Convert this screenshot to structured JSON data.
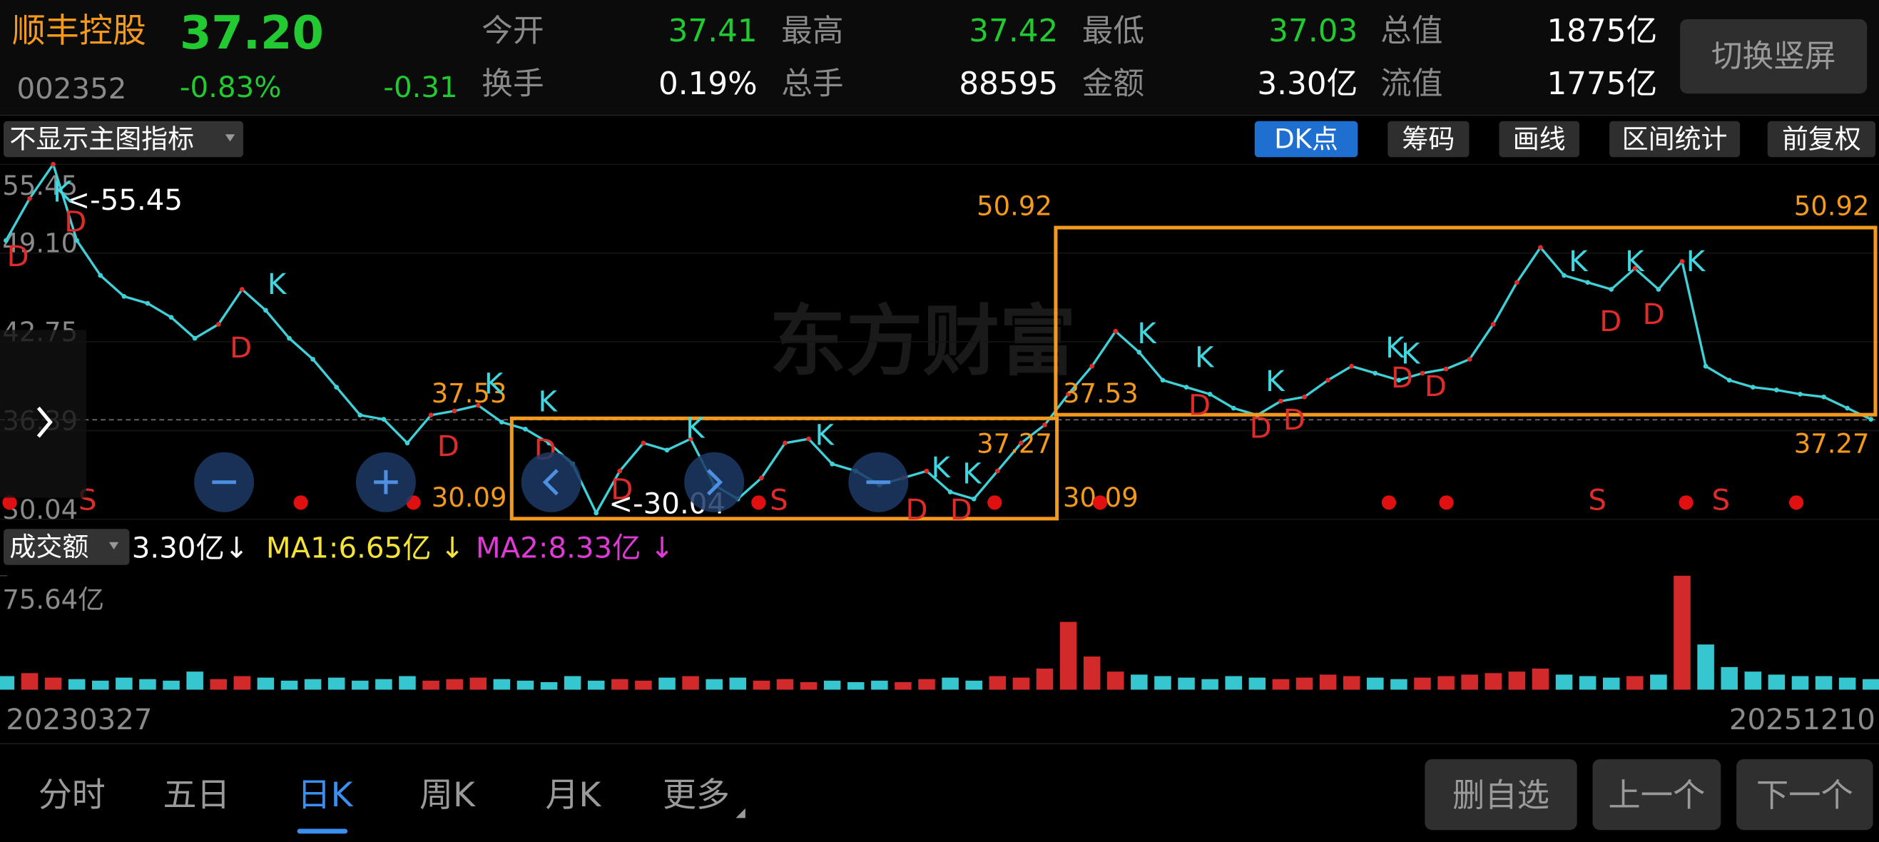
{
  "header": {
    "name": "顺丰控股",
    "price": "37.20",
    "code": "002352",
    "change_pct": "-0.83%",
    "change": "-0.31",
    "stats": [
      {
        "label": "今开",
        "value": "37.41"
      },
      {
        "label": "最高",
        "value": "37.42"
      },
      {
        "label": "最低",
        "value": "37.03"
      },
      {
        "label": "总值",
        "value": "1875亿"
      },
      {
        "label": "换手",
        "value": "0.19%"
      },
      {
        "label": "总手",
        "value": "88595"
      },
      {
        "label": "金额",
        "value": "3.30亿"
      },
      {
        "label": "流值",
        "value": "1775亿"
      }
    ],
    "rotate_button": "切换竖屏"
  },
  "toolbar": {
    "indicator": "不显示主图指标",
    "buttons": [
      "DK点",
      "筹码",
      "画线",
      "区间统计",
      "前复权"
    ]
  },
  "chart_data": [
    {
      "type": "line",
      "watermark": "东方财富",
      "color": "#3fd0d8",
      "values": [
        50,
        53,
        55.45,
        50,
        47.5,
        46,
        45.5,
        44.5,
        43,
        44,
        46.5,
        45,
        43,
        41.5,
        39.5,
        37.5,
        37.2,
        35.5,
        37.5,
        37.8,
        38.2,
        37,
        36.5,
        35.5,
        34,
        30.5,
        33.5,
        35.5,
        35,
        35.8,
        32.5,
        31.5,
        33,
        35.5,
        35.8,
        34,
        33.5,
        32.5,
        33,
        33.5,
        32,
        31.5,
        33.5,
        35.5,
        36.8,
        39,
        41,
        43.5,
        42,
        40,
        39.5,
        39,
        38,
        37.5,
        38.5,
        38.8,
        40,
        41,
        40.5,
        40,
        40.5,
        40.8,
        41.5,
        44,
        47,
        49.5,
        47.5,
        47,
        46.5,
        48,
        46.5,
        48.5,
        41,
        40,
        39.5,
        39.3,
        39,
        38.8,
        38,
        37.2
      ],
      "ylim": [
        30.04,
        55.45
      ],
      "yticks": [
        55.45,
        {
          "value": 49.1,
          "label": "49.10"
        },
        42.75,
        36.39,
        30.04
      ],
      "annotations": [
        "<-55.45",
        "<-30.04"
      ],
      "boxes": [
        {
          "top": 37.27,
          "bottom": 30.09
        },
        {
          "top": 50.92,
          "bottom": 37.53
        }
      ],
      "box_color": "#f39a1e",
      "box_labels": [
        37.53,
        30.09,
        37.27,
        30.09,
        50.92,
        50.92,
        37.53,
        37.27
      ],
      "markers": [
        "K",
        "K",
        "K",
        "K",
        "K",
        "K",
        "K",
        "K",
        "K",
        "K",
        "K",
        "K",
        "K",
        "K",
        "K",
        "K",
        "D",
        "D",
        "D",
        "D",
        "D",
        "D",
        "D",
        "D",
        "D",
        "D",
        "D",
        "D",
        "D",
        "D",
        "D",
        "S",
        "S",
        "S",
        "S"
      ]
    },
    {
      "type": "bar",
      "selector": "成交额",
      "legend": [
        {
          "name": "3.30亿↓",
          "color": "#ffffff"
        },
        {
          "name": "MA1:6.65亿 ↓",
          "color": "#f5e33a"
        },
        {
          "name": "MA2:8.33亿 ↓",
          "color": "#e03ad6"
        }
      ],
      "values": [
        9,
        11,
        8,
        7,
        6,
        8,
        7,
        6,
        12,
        7,
        9,
        8,
        6,
        7,
        8,
        6,
        7,
        9,
        6,
        7,
        8,
        7,
        6,
        5,
        9,
        6,
        7,
        6,
        8,
        9,
        7,
        8,
        6,
        7,
        5,
        6,
        5,
        6,
        5,
        7,
        8,
        6,
        9,
        8,
        14,
        45,
        22,
        12,
        10,
        9,
        8,
        7,
        9,
        8,
        7,
        8,
        10,
        9,
        8,
        7,
        8,
        9,
        10,
        11,
        12,
        14,
        10,
        9,
        8,
        9,
        10,
        75.64,
        30,
        15,
        12,
        10,
        9,
        9,
        8,
        7
      ],
      "ylim": [
        0,
        75.64
      ],
      "yticks": [
        {
          "value": 75.64,
          "label": "75.64亿"
        }
      ],
      "x_labels": [
        "20230327",
        "20251210"
      ]
    }
  ],
  "tabs": [
    "分时",
    "五日",
    "日K",
    "周K",
    "月K",
    "更多"
  ],
  "actions": [
    "删自选",
    "上一个",
    "下一个"
  ]
}
